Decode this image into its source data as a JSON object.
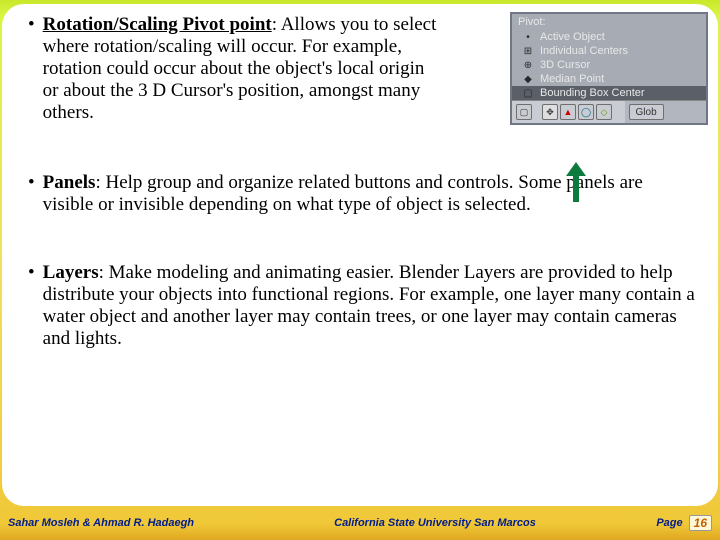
{
  "bullets": [
    {
      "title": "Rotation/Scaling Pivot point",
      "text": ": Allows you to select where rotation/scaling will occur. For example, rotation could occur about the object's local origin or about the 3 D Cursor's position, amongst many others."
    },
    {
      "title": "Panels",
      "text": ": Help group and organize related buttons and controls. Some panels are visible or invisible depending on what type of object is selected."
    },
    {
      "title": "Layers",
      "text": ": Make modeling and animating easier. Blender Layers are provided to help distribute your objects into functional regions. For example, one layer many contain a water object and another layer may contain trees, or one layer may contain cameras and lights."
    }
  ],
  "pivot_menu": {
    "title": "Pivot:",
    "items": [
      {
        "icon": "•",
        "label": "Active Object"
      },
      {
        "icon": "⊞",
        "label": "Individual Centers"
      },
      {
        "icon": "⊕",
        "label": "3D Cursor"
      },
      {
        "icon": "◆",
        "label": "Median Point"
      },
      {
        "icon": "▢",
        "label": "Bounding Box Center",
        "selected": true
      }
    ],
    "toolbar_right_label": "Glob"
  },
  "footer": {
    "authors": "Sahar Mosleh & Ahmad R. Hadaegh",
    "institution": "California State University San Marcos",
    "page_label": "Page",
    "page_number": "16"
  },
  "arrow_color": "#0d7a3e"
}
